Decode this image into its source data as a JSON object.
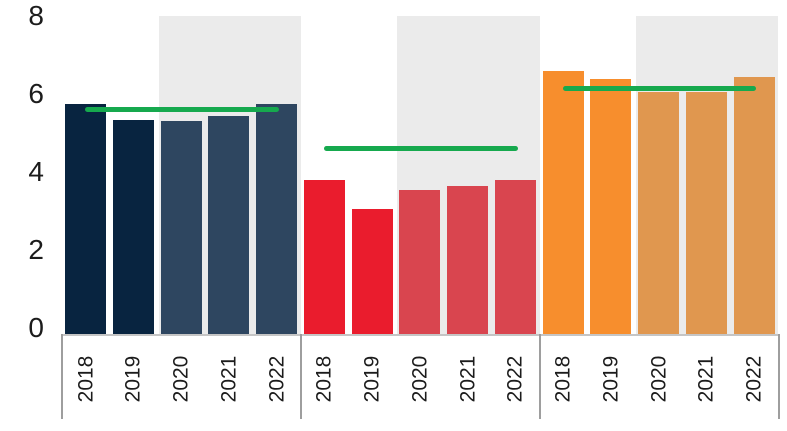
{
  "chart_data": {
    "type": "bar",
    "title": "",
    "xlabel": "",
    "ylabel": "",
    "ylim": [
      0,
      8
    ],
    "grid": false,
    "legend_position": "none",
    "y_axis_ticks": [
      {
        "label": "8",
        "value": 8
      },
      {
        "label": "6",
        "value": 6
      },
      {
        "label": "4",
        "value": 4
      },
      {
        "label": "2",
        "value": 2
      },
      {
        "label": "0",
        "value": 0
      }
    ],
    "categories": [
      "2018",
      "2019",
      "2020",
      "2021",
      "2022"
    ],
    "band_color": "#EBEBEB",
    "benchmark_color": "#16A94E",
    "groups": [
      {
        "name": "series-navy",
        "values": [
          5.9,
          5.5,
          5.45,
          5.6,
          5.9
        ],
        "bar_colors": [
          "#082440",
          "#082440",
          "#2E4660",
          "#2E4660",
          "#2E4660"
        ],
        "benchmark_value": 5.75,
        "highlight_band_years": [
          "2020",
          "2021",
          "2022"
        ]
      },
      {
        "name": "series-red",
        "values": [
          3.95,
          3.2,
          3.7,
          3.8,
          3.95
        ],
        "bar_colors": [
          "#EA1C2D",
          "#EA1C2D",
          "#D9454F",
          "#D9454F",
          "#D9454F"
        ],
        "benchmark_value": 4.75,
        "highlight_band_years": [
          "2020",
          "2021",
          "2022"
        ]
      },
      {
        "name": "series-orange",
        "values": [
          6.75,
          6.55,
          6.2,
          6.2,
          6.6
        ],
        "bar_colors": [
          "#F78E2D",
          "#F78E2D",
          "#E0974F",
          "#E0974F",
          "#E0974F"
        ],
        "benchmark_value": 6.3,
        "highlight_band_years": [
          "2020",
          "2021",
          "2022"
        ]
      }
    ]
  }
}
